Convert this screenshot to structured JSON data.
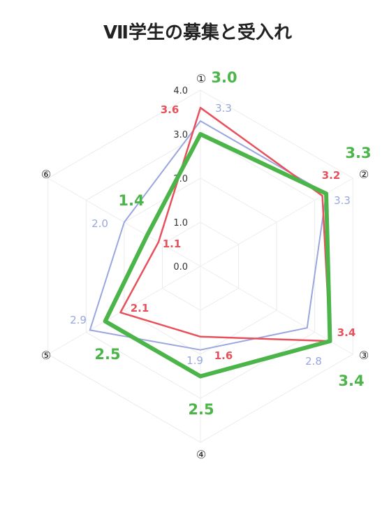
{
  "chart_data": {
    "type": "radar",
    "title": "Ⅶ学生の募集と受入れ",
    "axes": [
      "①",
      "②",
      "③",
      "④",
      "⑤",
      "⑥"
    ],
    "ylim": [
      0,
      4
    ],
    "ticks": [
      "0.0",
      "1.0",
      "2.0",
      "3.0",
      "4.0"
    ],
    "grid": true,
    "series": [
      {
        "color": "#e8505b",
        "values": [
          3.6,
          3.2,
          3.4,
          1.6,
          2.1,
          1.1
        ],
        "labels": [
          "3.6",
          "3.2",
          "3.4",
          "1.6",
          "2.1",
          "1.1"
        ]
      },
      {
        "color": "#9aa6df",
        "values": [
          3.3,
          3.3,
          2.8,
          1.9,
          2.9,
          2.0
        ],
        "labels": [
          "3.3",
          "3.3",
          "2.8",
          "1.9",
          "2.9",
          "2.0"
        ]
      },
      {
        "color": "#4cb54a",
        "values": [
          3.0,
          3.3,
          3.4,
          2.5,
          2.5,
          1.4
        ],
        "labels": [
          "3.0",
          "3.3",
          "3.4",
          "2.5",
          "2.5",
          "1.4"
        ]
      }
    ]
  }
}
